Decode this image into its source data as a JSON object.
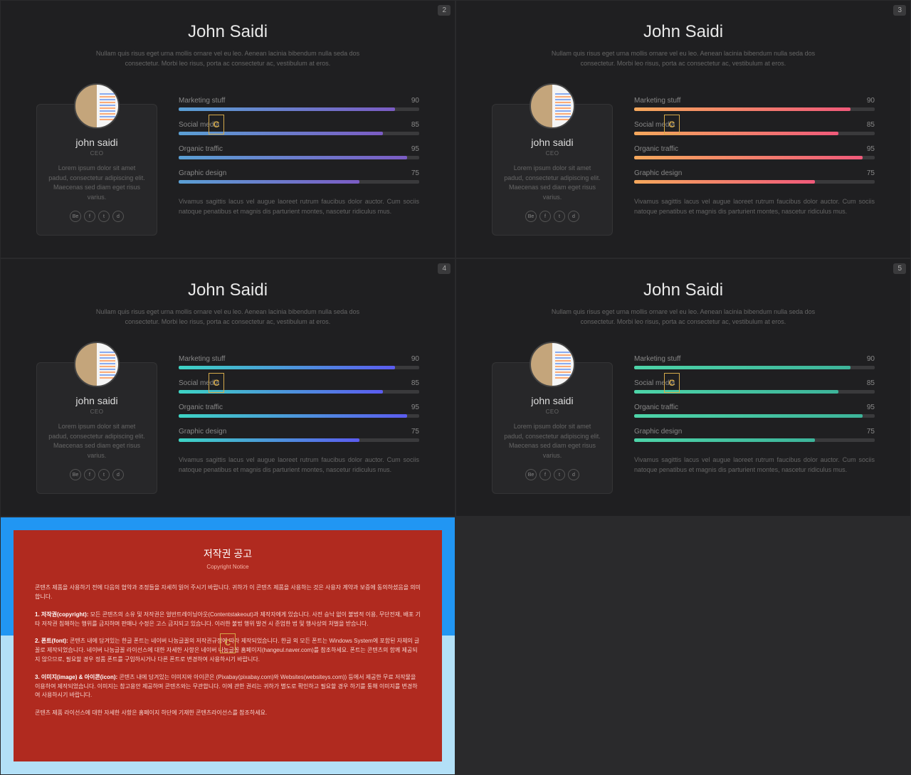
{
  "slides": [
    {
      "badge": "2",
      "gradient": [
        "#5a9fd4",
        "#7b5cc4"
      ]
    },
    {
      "badge": "3",
      "gradient": [
        "#f5a85c",
        "#f05a7a"
      ]
    },
    {
      "badge": "4",
      "gradient": [
        "#3dd4c4",
        "#5b5cf0"
      ]
    },
    {
      "badge": "5",
      "gradient": [
        "#4dd4a8",
        "#3db49a"
      ]
    }
  ],
  "profile": {
    "title": "John Saidi",
    "subtitle": "Nullam quis risus eget urna mollis ornare vel eu leo. Aenean lacinia bibendum nulla seda dos consectetur. Morbi leo risus, porta ac consectetur ac, vestibulum at eros.",
    "card_name": "john saidi",
    "card_role": "CEO",
    "card_desc": "Lorem ipsum dolor sit amet padud, consectetur adipiscing elit. Maecenas sed diam eget risus varius.",
    "social": [
      "Be",
      "f",
      "t",
      "d"
    ],
    "skills": [
      {
        "label": "Marketing stuff",
        "value": 90
      },
      {
        "label": "Social media",
        "value": 85
      },
      {
        "label": "Organic traffic",
        "value": 95
      },
      {
        "label": "Graphic design",
        "value": 75
      }
    ],
    "skills_desc": "Vivamus sagittis lacus vel augue laoreet rutrum faucibus dolor auctor. Cum sociis natoque penatibus et magnis dis parturient montes, nascetur ridiculus mus."
  },
  "copyright": {
    "title": "저작권 공고",
    "subtitle": "Copyright Notice",
    "p0": "콘텐츠 제품을 사용하기 전에 다음의 협약과 조정들을 자세히 읽어 주시기 바랍니다. 귀하가 이 콘텐츠 제품을 사용하는 것은 사용자 계약과 보증에 동의하셨음을 의미합니다.",
    "p1_label": "1. 저작권(copyright):",
    "p1": " 모든 콘텐츠의 소유 및 저작권은 얼반트레이닝아웃(Contentstakeout)과 제작자에게 있습니다. 사전 승낙 없이 불법적 이용, 무단전재, 배포 기타 저작권 침해하는 행위를 금지하며 판매나 수정은 고스 금지되고 있습니다. 이러한 불법 행위 발견 시 준엄한 법 및 행사상의 처벌을 받습니다.",
    "p2_label": "2. 폰트(font):",
    "p2": " 콘텐츠 내에 담겨있는 한글 폰트는 네이버 나눔글꼴의 저작권규정에 따라 제작되었습니다. 한글 외 모든 폰트는 Windows System에 포함된 자체의 글꼴로 제작되었습니다. 네이버 나눔글꼴 라이선스에 대한 자세한 사항은 네이버 나눔글꼴 홈페이지(hangeul.naver.com)를 참조하세요. 폰트는 콘텐츠의 함께 제공되지 않으므로, 필요할 경우 정품 폰트를 구입하시거나 다른 폰트로 변경하여 사용하시기 바랍니다.",
    "p3_label": "3. 이미지(image) & 아이콘(icon):",
    "p3": " 콘텐츠 내에 담겨있는 이미지와 아이콘은 (Pixabay(pixabay.com)와 Websites(websiteys.com)) 등에서 제공한 무료 저작물을 이용하여 제작되었습니다. 이미지는 참고용안 제공하며 콘텐츠와는 무관합니다. 이에 관한 권리는 귀하가 별도로 확인하고 필요할 경우 하기를 통해 이미지를 변경하여 사용하시기 바랍니다.",
    "p4": "콘텐츠 제품 라이선스에 대한 자세한 사항은 홈페이지 하단에 기재한 콘텐츠라이선스를 참조하세요."
  },
  "bar_track_color": "#3a3a3c",
  "background_color": "#1f1f21"
}
